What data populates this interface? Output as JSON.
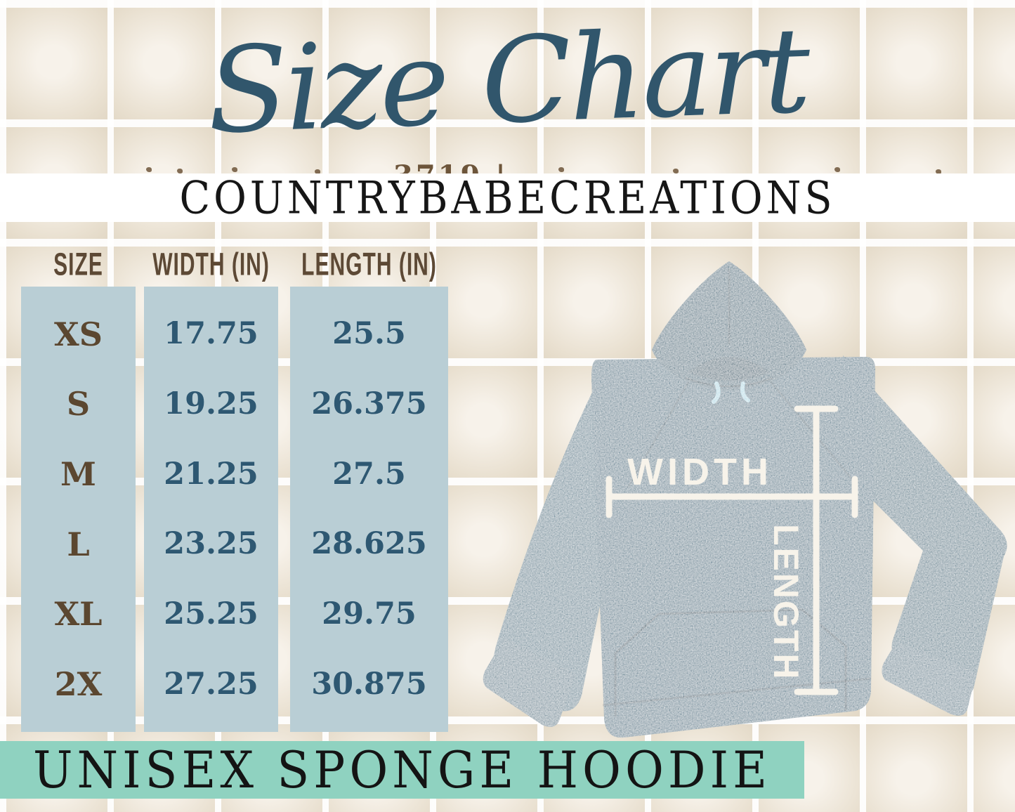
{
  "page": {
    "title_script": "Size Chart",
    "brand": "COUNTRYBABECREATIONS",
    "obscured_fragment": "3719 |",
    "banner_label": "UNISEX SPONGE HOODIE"
  },
  "chart_data": {
    "type": "table",
    "title": "Size Chart",
    "brand": "COUNTRYBABECREATIONS",
    "product": "UNISEX SPONGE HOODIE",
    "headers": [
      "SIZE",
      "WIDTH (IN)",
      "LENGTH (IN)"
    ],
    "rows": [
      {
        "size": "XS",
        "width": "17.75",
        "length": "25.5"
      },
      {
        "size": "S",
        "width": "19.25",
        "length": "26.375"
      },
      {
        "size": "M",
        "width": "21.25",
        "length": "27.5"
      },
      {
        "size": "L",
        "width": "23.25",
        "length": "28.625"
      },
      {
        "size": "XL",
        "width": "25.25",
        "length": "29.75"
      },
      {
        "size": "2X",
        "width": "27.25",
        "length": "30.875"
      }
    ]
  },
  "hoodie": {
    "width_label": "WIDTH",
    "length_label": "LENGTH"
  },
  "colors": {
    "title_blue": "#31566c",
    "header_brown": "#5d4935",
    "size_brown": "#5b4730",
    "value_blue": "#2e5872",
    "column_blue": "#b9ced5",
    "banner_teal": "#8fd2c0",
    "hoodie_heather": "#74909e",
    "measure_white": "#f7f3ea"
  }
}
